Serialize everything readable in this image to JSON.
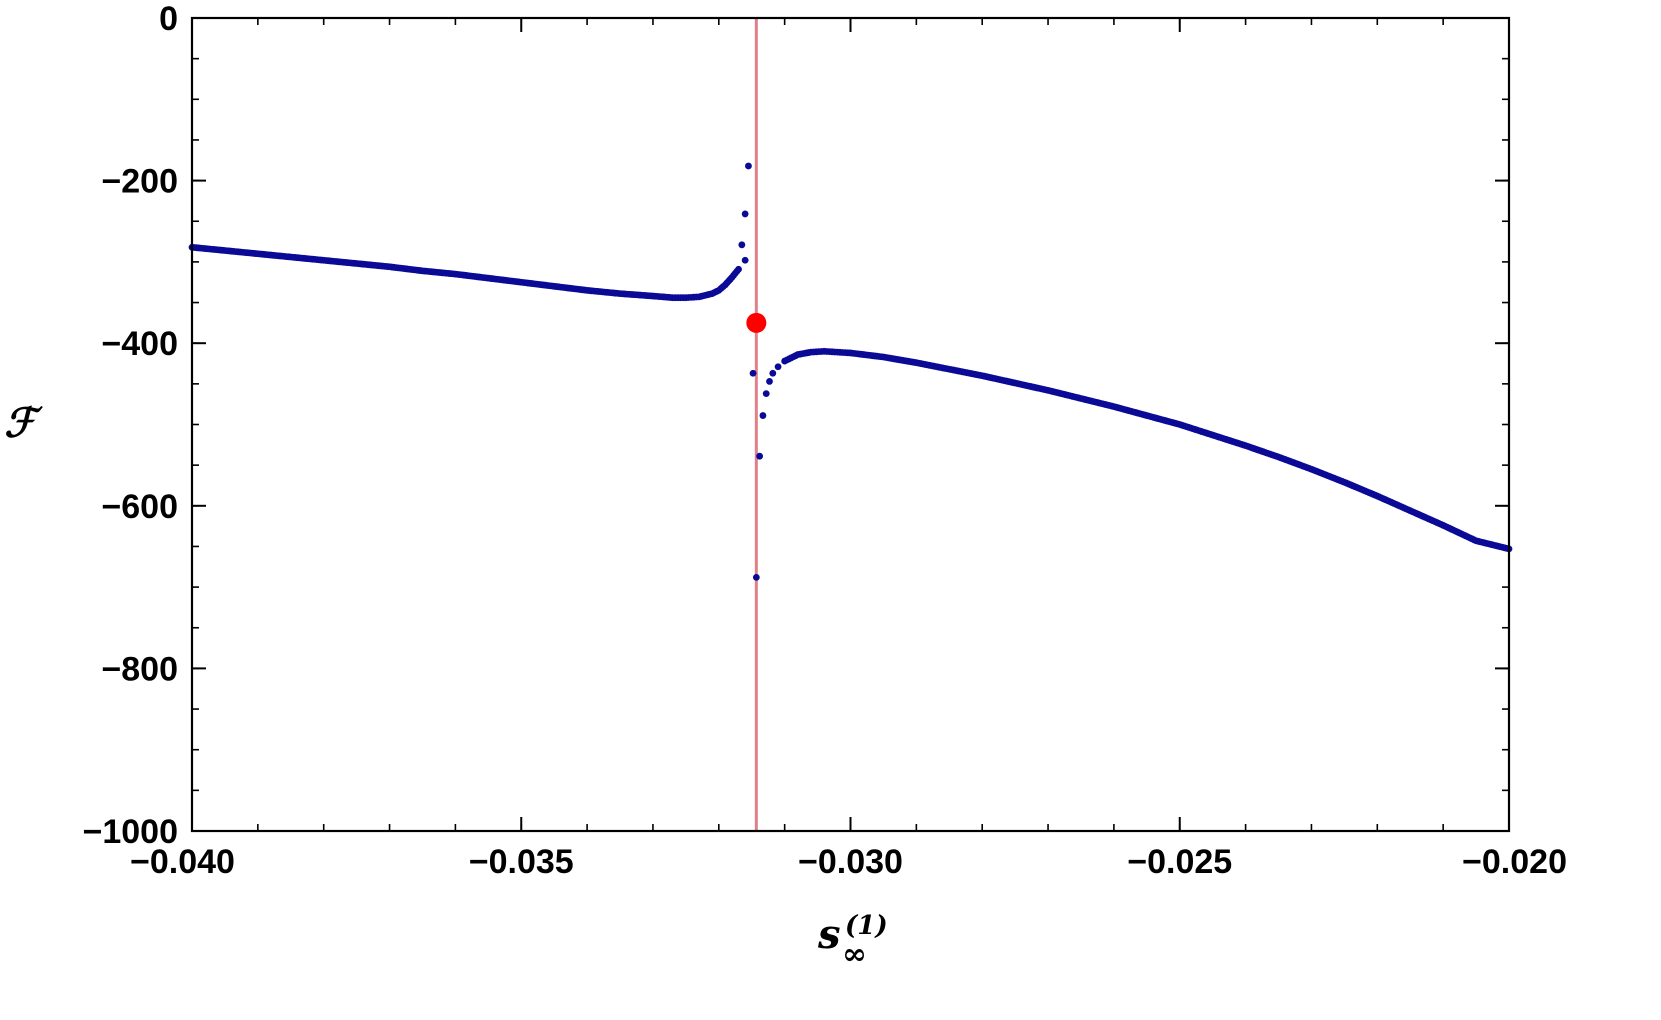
{
  "chart_data": {
    "type": "scatter",
    "title": "",
    "xlabel": {
      "base": "s",
      "subscript": "∞",
      "superscript": "(1)"
    },
    "ylabel": "ℱ",
    "xlim": [
      -0.04,
      -0.02
    ],
    "ylim": [
      -1000,
      0
    ],
    "grid": false,
    "x_ticks": [
      {
        "value": -0.04,
        "label": "−0.040"
      },
      {
        "value": -0.035,
        "label": "−0.035"
      },
      {
        "value": -0.03,
        "label": "−0.030"
      },
      {
        "value": -0.025,
        "label": "−0.025"
      },
      {
        "value": -0.02,
        "label": "−0.020"
      }
    ],
    "y_ticks": [
      {
        "value": 0,
        "label": "0"
      },
      {
        "value": -200,
        "label": "−200"
      },
      {
        "value": -400,
        "label": "−400"
      },
      {
        "value": -600,
        "label": "−600"
      },
      {
        "value": -800,
        "label": "−800"
      },
      {
        "value": -1000,
        "label": "−1000"
      }
    ],
    "x_minor_step": 0.001,
    "y_minor_step": 50,
    "series": [
      {
        "color": "#0a0a96",
        "points": [
          [
            -0.04,
            -282
          ],
          [
            -0.0395,
            -286
          ],
          [
            -0.039,
            -290
          ],
          [
            -0.0385,
            -294
          ],
          [
            -0.038,
            -298
          ],
          [
            -0.0375,
            -302
          ],
          [
            -0.037,
            -306
          ],
          [
            -0.0365,
            -311
          ],
          [
            -0.036,
            -315
          ],
          [
            -0.0355,
            -320
          ],
          [
            -0.035,
            -325
          ],
          [
            -0.0345,
            -330
          ],
          [
            -0.034,
            -335
          ],
          [
            -0.0335,
            -339
          ],
          [
            -0.033,
            -342
          ],
          [
            -0.0327,
            -344
          ],
          [
            -0.0325,
            -344
          ],
          [
            -0.0323,
            -343
          ],
          [
            -0.0321,
            -339
          ],
          [
            -0.032,
            -335
          ],
          [
            -0.0319,
            -328
          ],
          [
            -0.0318,
            -319
          ],
          [
            -0.0317,
            -309
          ],
          [
            -0.0316,
            -298
          ],
          [
            -0.03165,
            -279
          ],
          [
            -0.0316,
            -241
          ],
          [
            -0.03155,
            -182
          ],
          [
            -0.03148,
            -437
          ],
          [
            -0.03143,
            -688
          ],
          [
            -0.03138,
            -539
          ],
          [
            -0.03133,
            -489
          ],
          [
            -0.03128,
            -462
          ],
          [
            -0.03123,
            -447
          ],
          [
            -0.03118,
            -437
          ],
          [
            -0.0311,
            -429
          ],
          [
            -0.031,
            -422
          ],
          [
            -0.0309,
            -418
          ],
          [
            -0.0308,
            -414
          ],
          [
            -0.0306,
            -411
          ],
          [
            -0.0304,
            -410
          ],
          [
            -0.0302,
            -411
          ],
          [
            -0.03,
            -412
          ],
          [
            -0.0295,
            -417
          ],
          [
            -0.029,
            -424
          ],
          [
            -0.0285,
            -432
          ],
          [
            -0.028,
            -440
          ],
          [
            -0.0275,
            -449
          ],
          [
            -0.027,
            -458
          ],
          [
            -0.0265,
            -468
          ],
          [
            -0.026,
            -478
          ],
          [
            -0.0255,
            -489
          ],
          [
            -0.025,
            -500
          ],
          [
            -0.0245,
            -513
          ],
          [
            -0.024,
            -526
          ],
          [
            -0.0235,
            -540
          ],
          [
            -0.023,
            -555
          ],
          [
            -0.0225,
            -571
          ],
          [
            -0.022,
            -588
          ],
          [
            -0.0215,
            -606
          ],
          [
            -0.021,
            -624
          ],
          [
            -0.0205,
            -643
          ],
          [
            -0.02,
            -653
          ]
        ]
      }
    ],
    "vertical_line": {
      "x": -0.03143,
      "color": "#e08088"
    },
    "highlight_point": {
      "x": -0.03143,
      "y": -375,
      "color": "#ff0000"
    }
  }
}
